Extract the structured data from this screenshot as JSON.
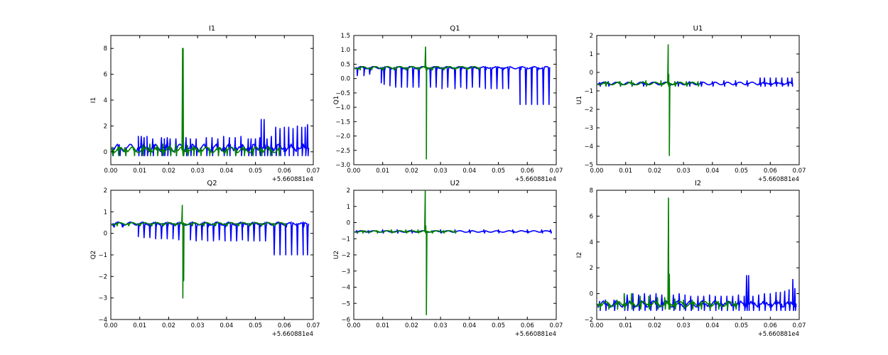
{
  "chart_data": [
    {
      "type": "line",
      "title": "I1",
      "xlabel": "",
      "ylabel": "I1",
      "x_offset_label": "+5.660881e4",
      "xlim": [
        0.0,
        0.07
      ],
      "ylim": [
        -1,
        9
      ],
      "xticks": [
        "0.00",
        "0.01",
        "0.02",
        "0.03",
        "0.04",
        "0.05",
        "0.06",
        "0.07"
      ],
      "yticks": [
        0,
        2,
        4,
        6,
        8
      ],
      "ytick_labels": [
        "0",
        "2",
        "4",
        "6",
        "8"
      ],
      "series": [
        {
          "color": "#0000ff",
          "x": [
            0.0006,
            0.003,
            0.005,
            0.0095,
            0.0105,
            0.0115,
            0.0125,
            0.0145,
            0.0175,
            0.0185,
            0.0195,
            0.0205,
            0.0225,
            0.026,
            0.0275,
            0.0295,
            0.033,
            0.035,
            0.037,
            0.039,
            0.041,
            0.043,
            0.045,
            0.0475,
            0.0485,
            0.05,
            0.0515,
            0.052,
            0.053,
            0.054,
            0.0555,
            0.057,
            0.0585,
            0.06,
            0.0615,
            0.063,
            0.0645,
            0.066,
            0.0672,
            0.068
          ],
          "y": [
            0.2,
            0.25,
            0.3,
            1.2,
            1.2,
            1.1,
            1.2,
            1.0,
            1.1,
            1.0,
            1.1,
            1.0,
            1.0,
            1.1,
            1.0,
            1.0,
            1.1,
            1.1,
            1.0,
            1.2,
            1.1,
            1.1,
            1.2,
            1.0,
            1.0,
            1.0,
            1.1,
            2.5,
            2.5,
            1.0,
            1.2,
            1.9,
            1.8,
            1.9,
            1.9,
            1.8,
            2.0,
            1.9,
            1.9,
            2.1
          ],
          "base": 0.3,
          "low": -0.3
        },
        {
          "color": "#008000",
          "x": [
            0.0005,
            0.0025,
            0.005,
            0.008,
            0.011,
            0.0135,
            0.016,
            0.018,
            0.0205,
            0.0225,
            0.0248,
            0.025,
            0.0265,
            0.0285,
            0.031,
            0.034,
            0.037,
            0.04,
            0.043,
            0.046,
            0.049,
            0.052,
            0.055,
            0.058
          ],
          "y": [
            0.35,
            0.4,
            0.3,
            0.3,
            0.5,
            0.6,
            0.5,
            0.6,
            0.5,
            0.6,
            8.0,
            8.0,
            0.5,
            0.4,
            0.3,
            0.3,
            0.25,
            0.3,
            0.25,
            0.3,
            0.3,
            0.3,
            0.3,
            0.3
          ],
          "base": 0.15,
          "low": -0.3
        }
      ]
    },
    {
      "type": "line",
      "title": "Q1",
      "xlabel": "",
      "ylabel": "Q1",
      "x_offset_label": "+5.660881e4",
      "xlim": [
        0.0,
        0.07
      ],
      "ylim": [
        -3.0,
        1.5
      ],
      "xticks": [
        "0.00",
        "0.01",
        "0.02",
        "0.03",
        "0.04",
        "0.05",
        "0.06",
        "0.07"
      ],
      "yticks": [
        -3.0,
        -2.5,
        -2.0,
        -1.5,
        -1.0,
        -0.5,
        0.0,
        0.5,
        1.0,
        1.5
      ],
      "ytick_labels": [
        "−3.0",
        "−2.5",
        "−2.0",
        "−1.5",
        "−1.0",
        "−0.5",
        "0.0",
        "0.5",
        "1.0",
        "1.5"
      ],
      "series": [
        {
          "color": "#0000ff",
          "x": [
            0.0012,
            0.0035,
            0.0055,
            0.0095,
            0.0105,
            0.0125,
            0.0145,
            0.0165,
            0.0185,
            0.0205,
            0.0225,
            0.0265,
            0.0285,
            0.0305,
            0.0325,
            0.035,
            0.037,
            0.039,
            0.041,
            0.0435,
            0.0455,
            0.0475,
            0.0495,
            0.0515,
            0.0535,
            0.0575,
            0.0595,
            0.0615,
            0.0635,
            0.0655,
            0.0675
          ],
          "y": [
            0.1,
            0.1,
            0.15,
            -0.15,
            -0.2,
            -0.25,
            -0.3,
            -0.3,
            -0.3,
            -0.3,
            -0.3,
            -0.3,
            -0.3,
            -0.35,
            -0.3,
            -0.35,
            -0.3,
            -0.35,
            -0.3,
            -0.3,
            -0.35,
            -0.35,
            -0.35,
            -0.35,
            -0.35,
            -0.9,
            -0.9,
            -0.9,
            -0.9,
            -0.9,
            -0.9
          ],
          "base": 0.38,
          "low": 0.3
        },
        {
          "color": "#008000",
          "x": [
            0.002,
            0.006,
            0.01,
            0.014,
            0.018,
            0.0222,
            0.0248,
            0.0251,
            0.027,
            0.031,
            0.035,
            0.039,
            0.043
          ],
          "y": [
            0.35,
            0.35,
            0.3,
            0.3,
            0.3,
            0.3,
            1.1,
            -2.8,
            0.3,
            0.35,
            0.35,
            0.35,
            0.35
          ],
          "base": 0.38,
          "low": 0.3
        }
      ]
    },
    {
      "type": "line",
      "title": "U1",
      "xlabel": "",
      "ylabel": "U1",
      "x_offset_label": "+5.660881e4",
      "xlim": [
        0.0,
        0.07
      ],
      "ylim": [
        -5,
        2
      ],
      "xticks": [
        "0.00",
        "0.01",
        "0.02",
        "0.03",
        "0.04",
        "0.05",
        "0.06",
        "0.07"
      ],
      "yticks": [
        -5,
        -4,
        -3,
        -2,
        -1,
        0,
        1,
        2
      ],
      "ytick_labels": [
        "−5",
        "−4",
        "−3",
        "−2",
        "−1",
        "0",
        "1",
        "2"
      ],
      "series": [
        {
          "color": "#0000ff",
          "x": [
            0.001,
            0.004,
            0.008,
            0.012,
            0.016,
            0.028,
            0.032,
            0.036,
            0.04,
            0.044,
            0.048,
            0.052,
            0.0565,
            0.058,
            0.06,
            0.062,
            0.064,
            0.066,
            0.0675
          ],
          "y": [
            -0.55,
            -0.5,
            -0.5,
            -0.5,
            -0.5,
            -0.5,
            -0.5,
            -0.5,
            -0.5,
            -0.45,
            -0.45,
            -0.45,
            -0.3,
            -0.3,
            -0.3,
            -0.3,
            -0.3,
            -0.3,
            -0.3
          ],
          "base": -0.6,
          "low": -0.75
        },
        {
          "color": "#008000",
          "x": [
            0.003,
            0.008,
            0.012,
            0.017,
            0.0222,
            0.0247,
            0.0249,
            0.0251,
            0.027,
            0.031,
            0.035
          ],
          "y": [
            -0.5,
            -0.5,
            -0.45,
            -0.45,
            -0.45,
            1.5,
            -0.1,
            -4.5,
            -0.5,
            -0.5,
            -0.5
          ],
          "base": -0.6,
          "low": -0.75
        }
      ]
    },
    {
      "type": "line",
      "title": "Q2",
      "xlabel": "",
      "ylabel": "Q2",
      "x_offset_label": "+5.660881e4",
      "xlim": [
        0.0,
        0.07
      ],
      "ylim": [
        -4,
        2
      ],
      "xticks": [
        "0.00",
        "0.01",
        "0.02",
        "0.03",
        "0.04",
        "0.05",
        "0.06",
        "0.07"
      ],
      "yticks": [
        -4,
        -3,
        -2,
        -1,
        0,
        1,
        2
      ],
      "ytick_labels": [
        "−4",
        "−3",
        "−2",
        "−1",
        "0",
        "1",
        "2"
      ],
      "series": [
        {
          "color": "#0000ff",
          "x": [
            0.001,
            0.004,
            0.0095,
            0.0115,
            0.0135,
            0.0155,
            0.0175,
            0.0195,
            0.0215,
            0.0235,
            0.0275,
            0.0295,
            0.0315,
            0.0335,
            0.0355,
            0.0375,
            0.0395,
            0.0415,
            0.0435,
            0.0455,
            0.0475,
            0.0495,
            0.0515,
            0.0535,
            0.0565,
            0.0585,
            0.0605,
            0.0625,
            0.0645,
            0.0665,
            0.068
          ],
          "y": [
            0.3,
            0.3,
            -0.15,
            -0.2,
            -0.2,
            -0.25,
            -0.25,
            -0.25,
            -0.25,
            -0.3,
            -0.3,
            -0.35,
            -0.3,
            -0.35,
            -0.35,
            -0.3,
            -0.35,
            -0.35,
            -0.35,
            -0.3,
            -0.35,
            -0.35,
            -0.35,
            -0.35,
            -1.0,
            -1.0,
            -1.0,
            -1.0,
            -1.0,
            -1.0,
            -1.0
          ],
          "base": 0.45,
          "low": 0.3
        },
        {
          "color": "#008000",
          "x": [
            0.002,
            0.006,
            0.01,
            0.014,
            0.018,
            0.0222,
            0.0247,
            0.0249,
            0.0252,
            0.028,
            0.032,
            0.036,
            0.04,
            0.044,
            0.048,
            0.052,
            0.056,
            0.06
          ],
          "y": [
            0.45,
            0.45,
            0.4,
            0.4,
            0.4,
            0.4,
            1.3,
            -3.0,
            -2.2,
            0.4,
            0.45,
            0.45,
            0.4,
            0.4,
            0.4,
            0.4,
            0.4,
            0.4
          ],
          "base": 0.45,
          "low": 0.35
        }
      ]
    },
    {
      "type": "line",
      "title": "U2",
      "xlabel": "",
      "ylabel": "U2",
      "x_offset_label": "+5.660881e4",
      "xlim": [
        0.0,
        0.07
      ],
      "ylim": [
        -6,
        2
      ],
      "xticks": [
        "0.00",
        "0.01",
        "0.02",
        "0.03",
        "0.04",
        "0.05",
        "0.06",
        "0.07"
      ],
      "yticks": [
        -6,
        -5,
        -4,
        -3,
        -2,
        -1,
        0,
        1,
        2
      ],
      "ytick_labels": [
        "−6",
        "−5",
        "−4",
        "−3",
        "−2",
        "−1",
        "0",
        "1",
        "2"
      ],
      "series": [
        {
          "color": "#0000ff",
          "x": [
            0.001,
            0.005,
            0.01,
            0.015,
            0.02,
            0.03,
            0.035,
            0.04,
            0.045,
            0.05,
            0.055,
            0.06,
            0.065,
            0.068
          ],
          "y": [
            -0.5,
            -0.5,
            -0.45,
            -0.45,
            -0.45,
            -0.45,
            -0.45,
            -0.45,
            -0.45,
            -0.45,
            -0.45,
            -0.45,
            -0.45,
            -0.45
          ],
          "base": -0.55,
          "low": -0.65
        },
        {
          "color": "#008000",
          "x": [
            0.003,
            0.008,
            0.013,
            0.018,
            0.0222,
            0.0247,
            0.0249,
            0.0251,
            0.027,
            0.031,
            0.035
          ],
          "y": [
            -0.5,
            -0.5,
            -0.45,
            -0.45,
            -0.45,
            2.0,
            -0.2,
            -5.7,
            -0.5,
            -0.5,
            -0.5
          ],
          "base": -0.55,
          "low": -0.65
        }
      ]
    },
    {
      "type": "line",
      "title": "I2",
      "xlabel": "",
      "ylabel": "I2",
      "x_offset_label": "+5.660881e4",
      "xlim": [
        0.0,
        0.07
      ],
      "ylim": [
        -2,
        8
      ],
      "xticks": [
        "0.00",
        "0.01",
        "0.02",
        "0.03",
        "0.04",
        "0.05",
        "0.06",
        "0.07"
      ],
      "yticks": [
        -2,
        0,
        2,
        4,
        6,
        8
      ],
      "ytick_labels": [
        "−2",
        "0",
        "2",
        "4",
        "6",
        "8"
      ],
      "series": [
        {
          "color": "#0000ff",
          "x": [
            0.001,
            0.003,
            0.006,
            0.0095,
            0.0105,
            0.0125,
            0.0145,
            0.0165,
            0.0185,
            0.0205,
            0.0225,
            0.0265,
            0.0285,
            0.0305,
            0.0325,
            0.035,
            0.037,
            0.039,
            0.041,
            0.043,
            0.045,
            0.047,
            0.049,
            0.051,
            0.0518,
            0.0525,
            0.054,
            0.056,
            0.058,
            0.06,
            0.062,
            0.0635,
            0.065,
            0.0665,
            0.0678,
            0.0685
          ],
          "y": [
            -0.6,
            -0.5,
            -0.5,
            0.0,
            -0.1,
            0.0,
            -0.1,
            0.0,
            -0.1,
            0.0,
            -0.1,
            -0.1,
            0.0,
            -0.1,
            -0.2,
            -0.2,
            -0.2,
            -0.1,
            -0.2,
            -0.2,
            -0.2,
            -0.2,
            -0.1,
            -0.2,
            1.4,
            1.4,
            -0.2,
            -0.1,
            0.0,
            0.0,
            0.1,
            0.1,
            0.2,
            0.3,
            1.1,
            0.4
          ],
          "base": -0.8,
          "low": -1.3
        },
        {
          "color": "#008000",
          "x": [
            0.001,
            0.004,
            0.007,
            0.0095,
            0.012,
            0.015,
            0.018,
            0.021,
            0.0235,
            0.0248,
            0.0251,
            0.027,
            0.03,
            0.033,
            0.036,
            0.039,
            0.042,
            0.045,
            0.048
          ],
          "y": [
            -0.7,
            -0.7,
            -0.5,
            0.0,
            0.0,
            -0.2,
            -0.2,
            -0.3,
            -0.3,
            7.4,
            1.5,
            -0.4,
            -0.5,
            -0.5,
            -0.6,
            -0.6,
            -0.6,
            -0.6,
            -0.6
          ],
          "base": -0.8,
          "low": -1.2
        }
      ]
    }
  ]
}
